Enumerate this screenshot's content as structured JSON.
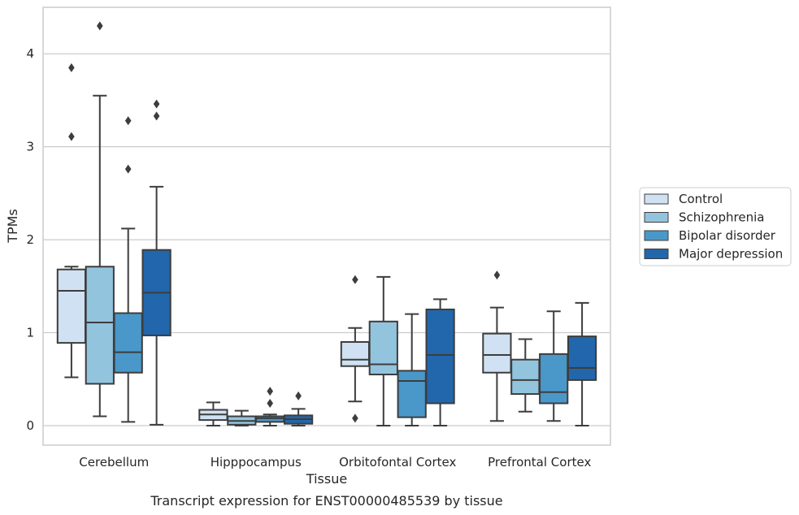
{
  "chart_data": {
    "type": "boxplot",
    "caption": "Transcript expression for ENST00000485539 by tissue",
    "xlabel": "Tissue",
    "ylabel": "TPMs",
    "ylim": [
      -0.21,
      4.5
    ],
    "yticks": [
      "0",
      "1",
      "2",
      "3",
      "4"
    ],
    "grid": "horizontal",
    "legend_position": "right-outside",
    "categories": [
      "Cerebellum",
      "Hipppocampus",
      "Orbitofontal Cortex",
      "Prefrontal Cortex"
    ],
    "series": [
      {
        "name": "Control",
        "color": "#cfe1f2",
        "boxes": [
          {
            "whislo": 0.52,
            "q1": 0.89,
            "med": 1.45,
            "q3": 1.68,
            "whishi": 1.71,
            "fliers": [
              3.11,
              3.85
            ]
          },
          {
            "whislo": 0.0,
            "q1": 0.06,
            "med": 0.12,
            "q3": 0.17,
            "whishi": 0.25,
            "fliers": []
          },
          {
            "whislo": 0.26,
            "q1": 0.64,
            "med": 0.71,
            "q3": 0.9,
            "whishi": 1.05,
            "fliers": [
              0.08,
              1.57
            ]
          },
          {
            "whislo": 0.05,
            "q1": 0.57,
            "med": 0.76,
            "q3": 0.99,
            "whishi": 1.27,
            "fliers": [
              1.62
            ]
          }
        ]
      },
      {
        "name": "Schizophrenia",
        "color": "#93c4de",
        "boxes": [
          {
            "whislo": 0.1,
            "q1": 0.45,
            "med": 1.11,
            "q3": 1.71,
            "whishi": 3.55,
            "fliers": [
              4.3
            ]
          },
          {
            "whislo": 0.0,
            "q1": 0.01,
            "med": 0.05,
            "q3": 0.1,
            "whishi": 0.16,
            "fliers": []
          },
          {
            "whislo": 0.0,
            "q1": 0.55,
            "med": 0.66,
            "q3": 1.12,
            "whishi": 1.6,
            "fliers": []
          },
          {
            "whislo": 0.15,
            "q1": 0.34,
            "med": 0.49,
            "q3": 0.71,
            "whishi": 0.93,
            "fliers": []
          }
        ]
      },
      {
        "name": "Bipolar disorder",
        "color": "#4a98c9",
        "boxes": [
          {
            "whislo": 0.04,
            "q1": 0.57,
            "med": 0.79,
            "q3": 1.21,
            "whishi": 2.12,
            "fliers": [
              2.76,
              3.28
            ]
          },
          {
            "whislo": 0.0,
            "q1": 0.04,
            "med": 0.08,
            "q3": 0.1,
            "whishi": 0.12,
            "fliers": [
              0.24,
              0.37
            ]
          },
          {
            "whislo": 0.0,
            "q1": 0.09,
            "med": 0.48,
            "q3": 0.59,
            "whishi": 1.2,
            "fliers": []
          },
          {
            "whislo": 0.05,
            "q1": 0.24,
            "med": 0.36,
            "q3": 0.77,
            "whishi": 1.23,
            "fliers": []
          }
        ]
      },
      {
        "name": "Major depression",
        "color": "#2266ac",
        "boxes": [
          {
            "whislo": 0.01,
            "q1": 0.97,
            "med": 1.43,
            "q3": 1.89,
            "whishi": 2.57,
            "fliers": [
              3.33,
              3.46
            ]
          },
          {
            "whislo": 0.0,
            "q1": 0.02,
            "med": 0.07,
            "q3": 0.11,
            "whishi": 0.18,
            "fliers": [
              0.32
            ]
          },
          {
            "whislo": 0.0,
            "q1": 0.24,
            "med": 0.76,
            "q3": 1.25,
            "whishi": 1.36,
            "fliers": []
          },
          {
            "whislo": 0.0,
            "q1": 0.49,
            "med": 0.62,
            "q3": 0.96,
            "whishi": 1.32,
            "fliers": []
          }
        ]
      }
    ]
  }
}
